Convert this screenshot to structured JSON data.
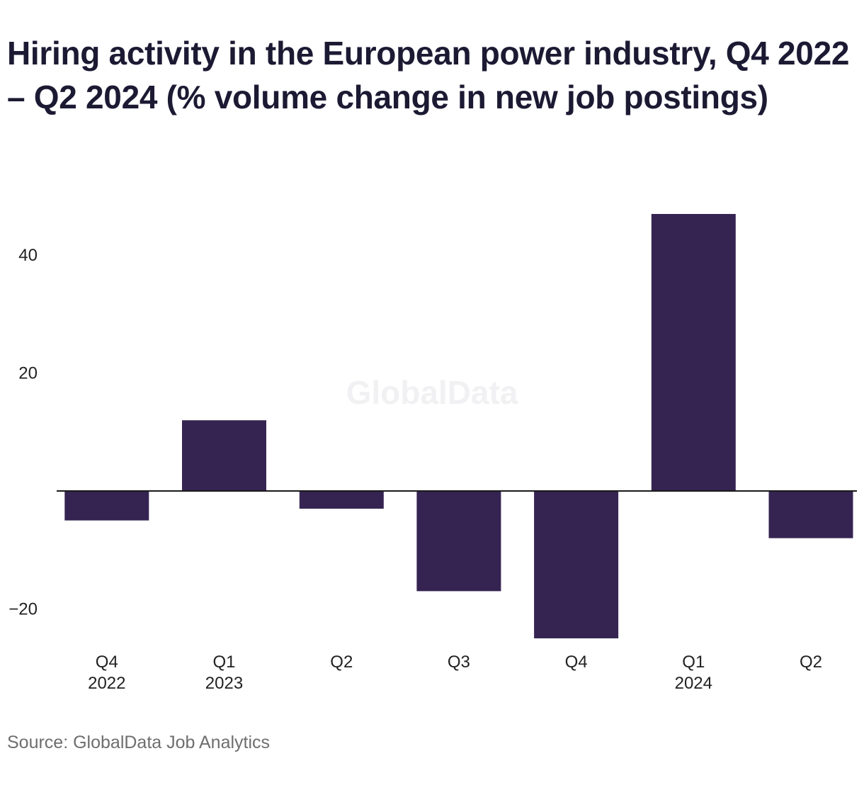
{
  "title": "Hiring activity in the European power industry, Q4 2022 – Q2 2024 (% volume change in new job postings)",
  "source": "Source: GlobalData Job Analytics",
  "watermark": "GlobalData",
  "colors": {
    "bar": "#352452",
    "zero_line": "#1a1a1a",
    "tick_text": "#222222"
  },
  "chart_data": {
    "type": "bar",
    "title": "Hiring activity in the European power industry, Q4 2022 – Q2 2024 (% volume change in new job postings)",
    "xlabel": "",
    "ylabel": "",
    "categories": [
      [
        "Q4",
        "2022"
      ],
      [
        "Q1",
        "2023"
      ],
      [
        "Q2",
        ""
      ],
      [
        "Q3",
        ""
      ],
      [
        "Q4",
        ""
      ],
      [
        "Q1",
        "2024"
      ],
      [
        "Q2",
        ""
      ]
    ],
    "values": [
      -5,
      12,
      -3,
      -17,
      -25,
      47,
      -8
    ],
    "ylim": [
      -25,
      47
    ],
    "yticks": [
      -20,
      20,
      40
    ],
    "ytick_labels": [
      "−20",
      "20",
      "40"
    ],
    "grid": false,
    "legend": "none"
  }
}
